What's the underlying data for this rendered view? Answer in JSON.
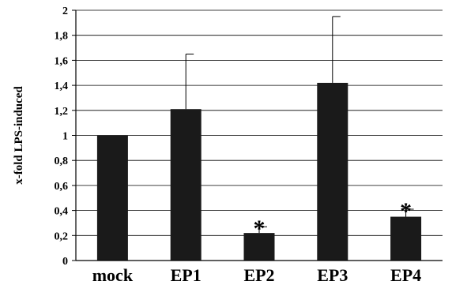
{
  "chart_data": {
    "type": "bar",
    "ylabel": "x-fold LPS-induced",
    "categories": [
      "mock",
      "EP1",
      "EP2",
      "EP3",
      "EP4"
    ],
    "values": [
      1.0,
      1.21,
      0.22,
      1.42,
      0.35
    ],
    "error_upper": [
      0.0,
      0.44,
      0.05,
      0.53,
      0.06
    ],
    "annotations": [
      "",
      "",
      "*",
      "",
      "*"
    ],
    "ylim": [
      0,
      2
    ],
    "yticks": [
      "0",
      "0,2",
      "0,4",
      "0,6",
      "0,8",
      "1",
      "1,2",
      "1,4",
      "1,6",
      "1,8",
      "2"
    ],
    "ytick_values": [
      0,
      0.2,
      0.4,
      0.6,
      0.8,
      1.0,
      1.2,
      1.4,
      1.6,
      1.8,
      2.0
    ],
    "grid": true,
    "bar_color": "#1a1a1a",
    "grid_color": "#000000"
  }
}
